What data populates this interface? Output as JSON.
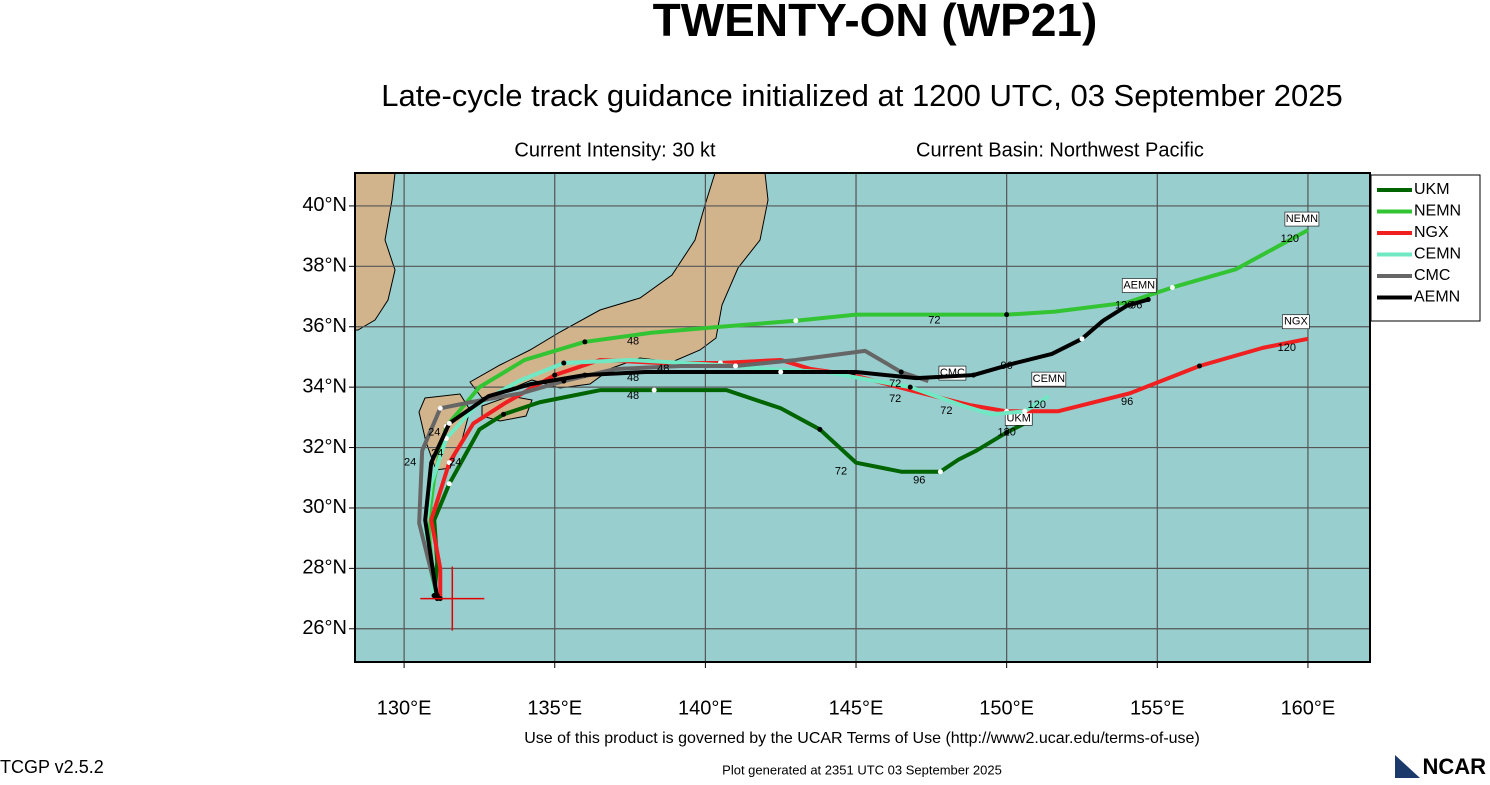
{
  "header": {
    "title": "TWENTY-ON (WP21)",
    "subtitle": "Late-cycle track guidance initialized at 1200 UTC, 03 September 2025",
    "intensity": "Current Intensity: 30 kt",
    "basin": "Current Basin: Northwest Pacific"
  },
  "footer": {
    "terms": "Use of this product is governed by the UCAR Terms of Use (http://www2.ucar.edu/terms-of-use)",
    "version": "TCGP v2.5.2",
    "generated": "Plot generated at 2351 UTC   03 September 2025",
    "logo": "NCAR"
  },
  "map": {
    "xlim": [
      128.37,
      162.06
    ],
    "ylim": [
      24.9,
      41.09
    ],
    "xticks": [
      {
        "value": 130,
        "label": "130°E"
      },
      {
        "value": 135,
        "label": "135°E"
      },
      {
        "value": 140,
        "label": "140°E"
      },
      {
        "value": 145,
        "label": "145°E"
      },
      {
        "value": 150,
        "label": "150°E"
      },
      {
        "value": 155,
        "label": "155°E"
      },
      {
        "value": 160,
        "label": "160°E"
      }
    ],
    "yticks": [
      {
        "value": 26,
        "label": "26°N"
      },
      {
        "value": 28,
        "label": "28°N"
      },
      {
        "value": 30,
        "label": "30°N"
      },
      {
        "value": 32,
        "label": "32°N"
      },
      {
        "value": 34,
        "label": "34°N"
      },
      {
        "value": 36,
        "label": "36°N"
      },
      {
        "value": 38,
        "label": "38°N"
      },
      {
        "value": 40,
        "label": "40°N"
      }
    ],
    "grid": true,
    "storm_position": {
      "lon": 131.6,
      "lat": 27.0
    },
    "tracks": [
      {
        "name": "UKM",
        "color": "#006400",
        "lon": [
          131.0,
          131.1,
          131.0,
          131.5,
          132.0,
          132.5,
          133.3,
          134.5,
          136.5,
          138.3,
          140.7,
          142.5,
          143.8,
          145.0,
          146.5,
          147.8,
          148.4,
          149.0,
          150.0,
          150.8
        ],
        "lat": [
          27.1,
          28.2,
          29.6,
          30.8,
          31.7,
          32.6,
          33.1,
          33.5,
          33.9,
          33.9,
          33.9,
          33.3,
          32.6,
          31.5,
          31.2,
          31.2,
          31.6,
          31.9,
          32.5,
          32.9
        ],
        "end_label": "UKM",
        "end_lon": 150.4,
        "end_lat": 32.7
      },
      {
        "name": "NEMN",
        "color": "#33c433",
        "lon": [
          131.0,
          130.8,
          131.0,
          131.4,
          132.5,
          134.0,
          136.0,
          138.2,
          140.5,
          143.0,
          145.0,
          148.0,
          150.0,
          151.6,
          154.0,
          155.5,
          157.6,
          160.0
        ],
        "lat": [
          27.1,
          29.5,
          31.0,
          32.7,
          34.0,
          34.9,
          35.5,
          35.8,
          36.0,
          36.2,
          36.4,
          36.4,
          36.4,
          36.5,
          36.8,
          37.3,
          37.9,
          39.2
        ],
        "end_label": "NEMN",
        "end_lon": 159.8,
        "end_lat": 39.3
      },
      {
        "name": "NGX",
        "color": "#f02020",
        "lon": [
          131.2,
          131.2,
          130.9,
          131.5,
          132.3,
          133.4,
          135.0,
          136.5,
          138.5,
          140.5,
          142.5,
          143.5,
          144.9,
          146.8,
          148.8,
          150.0,
          151.7,
          154.1,
          156.4,
          158.5,
          160.0
        ],
        "lat": [
          27.0,
          28.0,
          29.6,
          31.5,
          32.8,
          33.5,
          34.4,
          34.9,
          34.8,
          34.8,
          34.9,
          34.6,
          34.4,
          33.9,
          33.4,
          33.2,
          33.2,
          33.8,
          34.7,
          35.3,
          35.6
        ],
        "end_label": "NGX",
        "end_lon": 159.6,
        "end_lat": 35.9
      },
      {
        "name": "CEMN",
        "color": "#70e8c4",
        "lon": [
          131.0,
          130.7,
          130.9,
          131.4,
          132.4,
          133.8,
          135.3,
          137.5,
          139.3,
          141.0,
          142.0,
          144.0,
          146.8,
          148.5,
          149.5,
          150.6,
          151.4
        ],
        "lat": [
          27.1,
          29.2,
          30.8,
          32.3,
          33.4,
          34.2,
          34.8,
          34.9,
          34.8,
          34.7,
          34.6,
          34.5,
          34.0,
          33.4,
          33.1,
          33.2,
          33.7
        ],
        "end_label": "CEMN",
        "end_lon": 151.4,
        "end_lat": 34.0
      },
      {
        "name": "CMC",
        "color": "#666666",
        "lon": [
          131.1,
          130.5,
          130.6,
          131.2,
          132.2,
          133.9,
          135.3,
          137.0,
          139.2,
          141.0,
          143.0,
          145.3,
          146.5,
          147.4
        ],
        "lat": [
          27.1,
          29.5,
          31.9,
          33.3,
          33.5,
          33.8,
          34.2,
          34.6,
          34.7,
          34.7,
          34.9,
          35.2,
          34.5,
          34.2
        ],
        "end_label": "CMC",
        "end_lon": 148.2,
        "end_lat": 34.2
      },
      {
        "name": "AEMN",
        "color": "#000000",
        "lon": [
          131.1,
          130.7,
          130.9,
          131.5,
          132.8,
          134.2,
          136.0,
          138.0,
          140.0,
          142.5,
          145.0,
          147.0,
          148.9,
          150.3,
          151.5,
          152.5,
          153.2,
          154.0,
          154.7
        ],
        "lat": [
          27.0,
          29.6,
          31.5,
          32.8,
          33.7,
          34.1,
          34.4,
          34.5,
          34.5,
          34.5,
          34.5,
          34.3,
          34.4,
          34.8,
          35.1,
          35.6,
          36.2,
          36.7,
          36.9
        ],
        "end_label": "AEMN",
        "end_lon": 154.4,
        "end_lat": 37.1
      }
    ],
    "hour_labels": [
      {
        "text": "48",
        "lon": 137.6,
        "lat": 35.5
      },
      {
        "text": "72",
        "lon": 147.6,
        "lat": 36.2
      },
      {
        "text": "120",
        "lon": 159.4,
        "lat": 38.9
      },
      {
        "text": "120",
        "lon": 153.9,
        "lat": 36.7
      },
      {
        "text": "96",
        "lon": 154.3,
        "lat": 36.7
      },
      {
        "text": "96",
        "lon": 150.0,
        "lat": 34.7
      },
      {
        "text": "72",
        "lon": 146.3,
        "lat": 34.1
      },
      {
        "text": "72",
        "lon": 146.3,
        "lat": 33.6
      },
      {
        "text": "72",
        "lon": 148.0,
        "lat": 33.2
      },
      {
        "text": "120",
        "lon": 151.0,
        "lat": 33.4
      },
      {
        "text": "96",
        "lon": 154.0,
        "lat": 33.5
      },
      {
        "text": "120",
        "lon": 159.3,
        "lat": 35.3
      },
      {
        "text": "48",
        "lon": 137.6,
        "lat": 34.3
      },
      {
        "text": "48",
        "lon": 137.6,
        "lat": 33.7
      },
      {
        "text": "48",
        "lon": 138.6,
        "lat": 34.6
      },
      {
        "text": "72",
        "lon": 144.5,
        "lat": 31.2
      },
      {
        "text": "96",
        "lon": 147.1,
        "lat": 30.9
      },
      {
        "text": "120",
        "lon": 150.0,
        "lat": 32.5
      },
      {
        "text": "24",
        "lon": 131.0,
        "lat": 32.5
      },
      {
        "text": "24",
        "lon": 131.7,
        "lat": 31.5
      },
      {
        "text": "24",
        "lon": 130.2,
        "lat": 31.5
      },
      {
        "text": "24",
        "lon": 131.1,
        "lat": 31.8
      }
    ]
  }
}
